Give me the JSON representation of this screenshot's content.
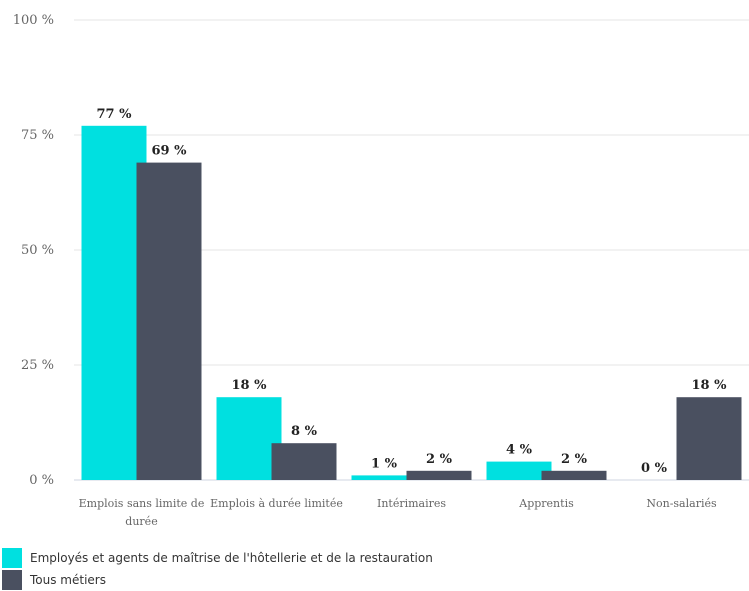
{
  "chart_data": {
    "type": "bar",
    "categories": [
      [
        "Emplois sans limite de",
        "durée"
      ],
      [
        "Emplois à durée limitée"
      ],
      [
        "Intérimaires"
      ],
      [
        "Apprentis"
      ],
      [
        "Non-salariés"
      ]
    ],
    "series": [
      {
        "name": "Employés et agents de maîtrise de l'hôtellerie et de la restauration",
        "color": "#00E0E0",
        "values": [
          77,
          18,
          1,
          4,
          0
        ],
        "labels": [
          "77 %",
          "18 %",
          "1 %",
          "4 %",
          "0 %"
        ]
      },
      {
        "name": "Tous métiers",
        "color": "#4A5060",
        "values": [
          69,
          8,
          2,
          2,
          18
        ],
        "labels": [
          "69 %",
          "8 %",
          "2 %",
          "2 %",
          "18 %"
        ]
      }
    ],
    "y_ticks": [
      0,
      25,
      50,
      75,
      100
    ],
    "y_tick_labels": [
      "0 %",
      "25 %",
      "50 %",
      "75 %",
      "100 %"
    ],
    "ylim": [
      0,
      100
    ],
    "grid": true,
    "legend_position": "bottom-left"
  }
}
